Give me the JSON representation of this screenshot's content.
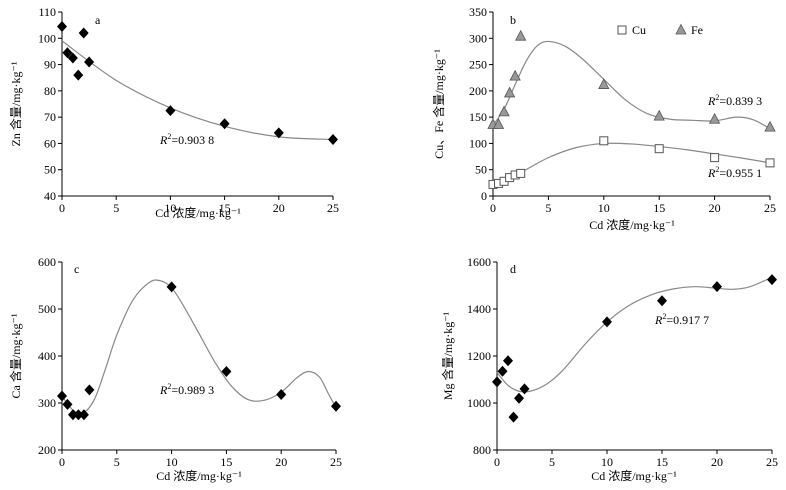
{
  "chart_data": [
    {
      "panel": "a",
      "type": "scatter",
      "xlabel": "Cd 浓度/mg·kg⁻¹",
      "ylabel": "Zn 含量/mg·kg⁻¹",
      "xlim": [
        0,
        25
      ],
      "ylim": [
        40,
        110
      ],
      "xticks": [
        "0",
        "5",
        "10",
        "15",
        "20",
        "25"
      ],
      "yticks": [
        "40",
        "50",
        "60",
        "70",
        "80",
        "90",
        "100",
        "110"
      ],
      "r2_label": "R²=0.903 8",
      "series": [
        {
          "marker": "diamond",
          "color": "#000000",
          "x": [
            0,
            0.5,
            1,
            1.5,
            2,
            2.5,
            10,
            15,
            20,
            25
          ],
          "y": [
            104.5,
            94.5,
            92.5,
            86,
            102,
            91,
            72.5,
            67.5,
            64,
            61.5
          ],
          "fit": [
            [
              0,
              99
            ],
            [
              5,
              84
            ],
            [
              10,
              73.5
            ],
            [
              15,
              66.5
            ],
            [
              20,
              62.5
            ],
            [
              25,
              61.5
            ]
          ]
        }
      ]
    },
    {
      "panel": "b",
      "type": "scatter",
      "xlabel": "Cd 浓度/mg·kg⁻¹",
      "ylabel": "Cu、Fe 含量/mg·kg⁻¹",
      "xlim": [
        0,
        25
      ],
      "ylim": [
        0,
        350
      ],
      "xticks": [
        "0",
        "5",
        "10",
        "15",
        "20",
        "25"
      ],
      "yticks": [
        "0",
        "50",
        "100",
        "150",
        "200",
        "250",
        "300",
        "350"
      ],
      "legend": {
        "position": "top-right",
        "entries": [
          "Cu",
          "Fe"
        ]
      },
      "series": [
        {
          "name": "Cu",
          "marker": "square-open",
          "color": "#000000",
          "x": [
            0,
            0.5,
            1,
            1.5,
            2,
            2.5,
            10,
            15,
            20,
            25
          ],
          "y": [
            22,
            24,
            28,
            35,
            40,
            43,
            105,
            90,
            73,
            63
          ],
          "r2_label": "R²=0.955 1",
          "fit": [
            [
              0,
              22
            ],
            [
              2.5,
              45
            ],
            [
              5,
              73
            ],
            [
              7.5,
              92
            ],
            [
              10,
              100
            ],
            [
              12.5,
              99
            ],
            [
              15,
              94
            ],
            [
              17.5,
              88
            ],
            [
              20,
              80
            ],
            [
              22.5,
              72
            ],
            [
              25,
              63
            ]
          ]
        },
        {
          "name": "Fe",
          "marker": "triangle",
          "color": "#999999",
          "x": [
            0,
            0.5,
            1,
            1.5,
            2,
            2.5,
            10,
            15,
            20,
            25
          ],
          "y": [
            136,
            136,
            160,
            196,
            228,
            304,
            212,
            152,
            146,
            131
          ],
          "r2_label": "R²=0.839 3",
          "fit": [
            [
              0,
              135
            ],
            [
              1,
              165
            ],
            [
              2,
              212
            ],
            [
              3,
              257
            ],
            [
              4,
              286
            ],
            [
              5,
              294
            ],
            [
              6.5,
              285
            ],
            [
              8,
              262
            ],
            [
              10,
              222
            ],
            [
              12,
              182
            ],
            [
              14,
              156
            ],
            [
              16,
              146
            ],
            [
              18,
              144
            ],
            [
              20,
              143
            ],
            [
              22,
              150
            ],
            [
              23.5,
              145
            ],
            [
              25,
              128
            ]
          ]
        }
      ]
    },
    {
      "panel": "c",
      "type": "scatter",
      "xlabel": "Cd 浓度/mg·kg⁻¹",
      "ylabel": "Ca 含量/mg·kg⁻¹",
      "xlim": [
        0,
        25
      ],
      "ylim": [
        200,
        600
      ],
      "xticks": [
        "0",
        "5",
        "10",
        "15",
        "20",
        "25"
      ],
      "yticks": [
        "200",
        "300",
        "400",
        "500",
        "600"
      ],
      "r2_label": "R²=0.989 3",
      "series": [
        {
          "marker": "diamond",
          "color": "#000000",
          "x": [
            0,
            0.5,
            1,
            1.5,
            2,
            2.5,
            10,
            15,
            20,
            25
          ],
          "y": [
            315,
            297,
            275,
            275,
            275,
            328,
            547,
            367,
            318,
            293
          ],
          "fit": [
            [
              0,
              315
            ],
            [
              1,
              285
            ],
            [
              2,
              280
            ],
            [
              3,
              310
            ],
            [
              4,
              375
            ],
            [
              5,
              445
            ],
            [
              6.5,
              520
            ],
            [
              8,
              557
            ],
            [
              9,
              560
            ],
            [
              10,
              545
            ],
            [
              11,
              510
            ],
            [
              12.5,
              448
            ],
            [
              14,
              385
            ],
            [
              15.5,
              335
            ],
            [
              17,
              307
            ],
            [
              18.5,
              306
            ],
            [
              20,
              323
            ],
            [
              21.5,
              355
            ],
            [
              22.5,
              367
            ],
            [
              23.5,
              355
            ],
            [
              24.3,
              320
            ],
            [
              25,
              290
            ]
          ]
        }
      ]
    },
    {
      "panel": "d",
      "type": "scatter",
      "xlabel": "Cd 浓度/mg·kg⁻¹",
      "ylabel": "Mg 含量/mg·kg⁻¹",
      "xlim": [
        0,
        25
      ],
      "ylim": [
        800,
        1600
      ],
      "xticks": [
        "0",
        "5",
        "10",
        "15",
        "20",
        "25"
      ],
      "yticks": [
        "800",
        "1000",
        "1200",
        "1400",
        "1600"
      ],
      "r2_label": "R²=0.917 7",
      "series": [
        {
          "marker": "diamond",
          "color": "#000000",
          "x": [
            0,
            0.5,
            1,
            1.5,
            2,
            2.5,
            10,
            15,
            20,
            25
          ],
          "y": [
            1090,
            1135,
            1180,
            940,
            1020,
            1060,
            1345,
            1435,
            1495,
            1525
          ],
          "fit": [
            [
              0,
              1130
            ],
            [
              1,
              1075
            ],
            [
              2,
              1050
            ],
            [
              3,
              1050
            ],
            [
              4.5,
              1080
            ],
            [
              6,
              1140
            ],
            [
              8,
              1250
            ],
            [
              10,
              1345
            ],
            [
              12,
              1415
            ],
            [
              14,
              1460
            ],
            [
              16,
              1485
            ],
            [
              18,
              1495
            ],
            [
              20,
              1488
            ],
            [
              21.5,
              1484
            ],
            [
              23,
              1495
            ],
            [
              25,
              1535
            ]
          ]
        }
      ]
    }
  ]
}
